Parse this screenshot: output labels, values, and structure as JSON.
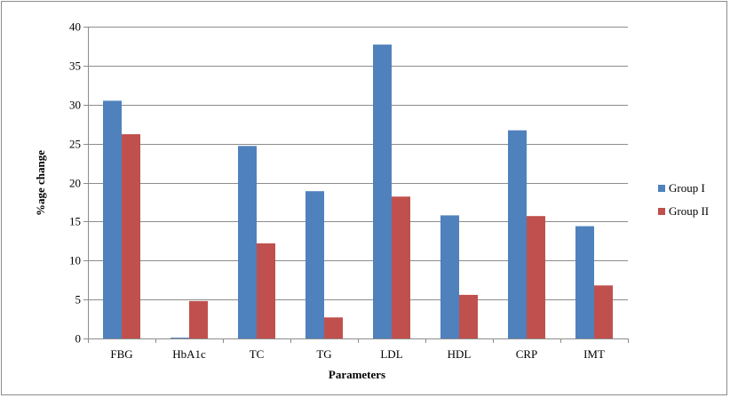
{
  "chart_data": {
    "type": "bar",
    "title": "",
    "xlabel": "Parameters",
    "ylabel": "%age change",
    "categories": [
      "FBG",
      "HbA1c",
      "TC",
      "TG",
      "LDL",
      "HDL",
      "CRP",
      "IMT"
    ],
    "series": [
      {
        "name": "Group I",
        "color": "#4f81bd",
        "values": [
          30.5,
          0.1,
          24.7,
          18.9,
          37.7,
          15.8,
          26.7,
          14.4
        ]
      },
      {
        "name": "Group II",
        "color": "#c0504d",
        "values": [
          26.2,
          4.8,
          12.2,
          2.7,
          18.2,
          5.6,
          15.7,
          6.8
        ]
      }
    ],
    "ylim": [
      0,
      40
    ],
    "yticks": [
      0,
      5,
      10,
      15,
      20,
      25,
      30,
      35,
      40
    ],
    "grid": true,
    "legend_position": "right"
  }
}
